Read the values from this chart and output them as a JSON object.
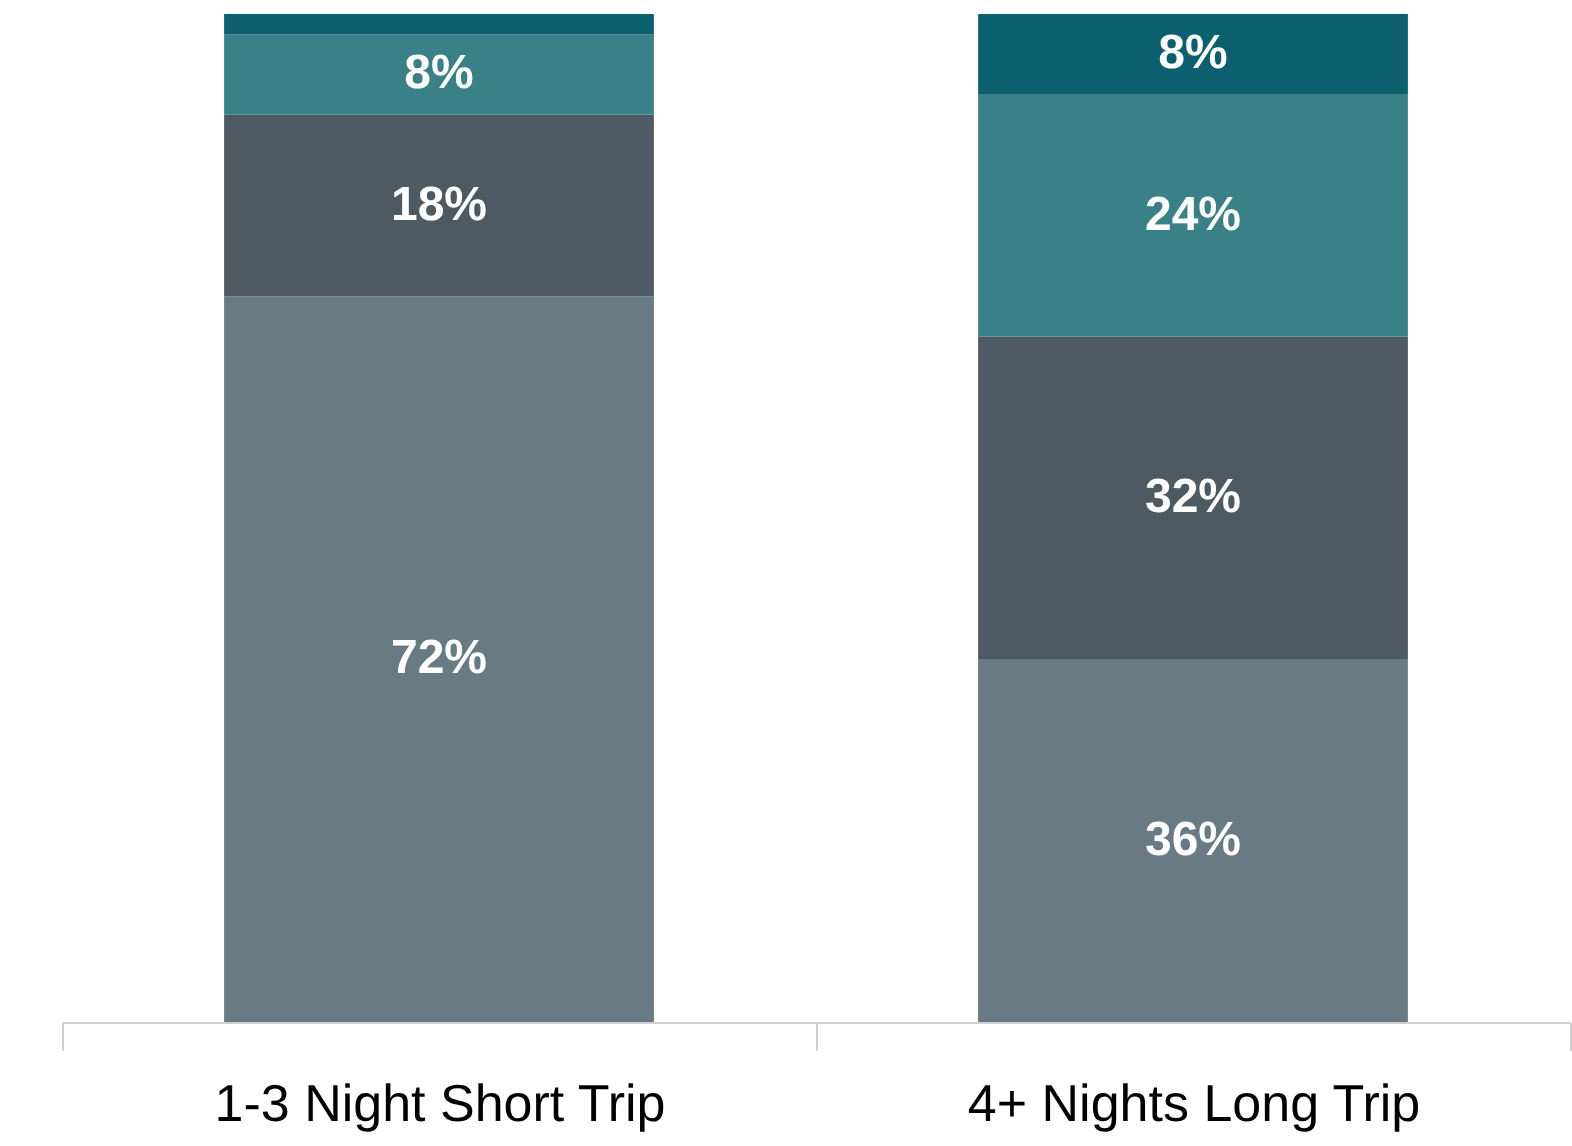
{
  "chart_data": {
    "type": "bar",
    "stacked": true,
    "categories": [
      "1-3 Night Short Trip",
      "4+ Nights Long Trip"
    ],
    "series": [
      {
        "color": "#687a84",
        "values": [
          72,
          36
        ],
        "value_labels": [
          "72%",
          "36%"
        ]
      },
      {
        "color": "#4e5a62",
        "values": [
          18,
          32
        ],
        "value_labels": [
          "18%",
          "32%"
        ]
      },
      {
        "color": "#3a8087",
        "values": [
          8,
          24
        ],
        "value_labels": [
          "8%",
          "24%"
        ]
      },
      {
        "color": "#0b5f6e",
        "values": [
          2,
          8
        ],
        "value_labels": [
          null,
          "8%"
        ]
      }
    ],
    "grid": false,
    "legend": false
  }
}
